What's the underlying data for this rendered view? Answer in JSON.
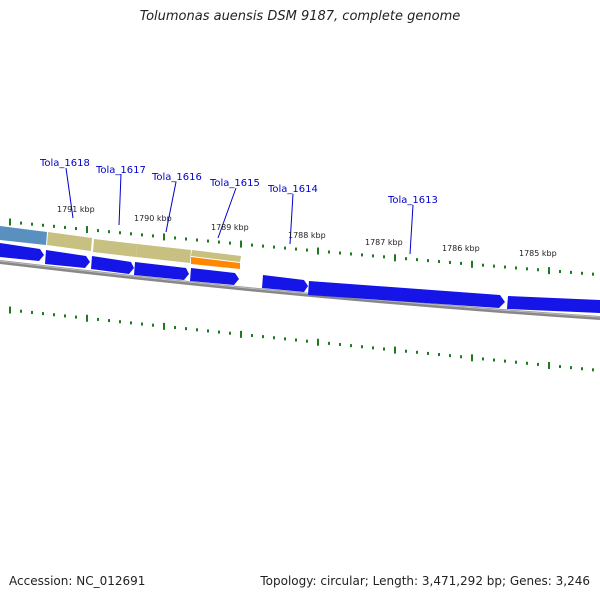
{
  "title": "Tolumonas auensis DSM 9187, complete genome",
  "accession": "Accession: NC_012691",
  "summary": "Topology: circular; Length: 3,471,292 bp; Genes: 3,246",
  "colors": {
    "gene_arrow": "#1515e8",
    "tick": "#1e7a1e",
    "backbone": "#808080",
    "label": "#0000cc",
    "feature_blue": "#5a90c0",
    "feature_khaki": "#c8c080",
    "feature_orange": "#ff8800"
  },
  "scale_labels": [
    "1791 kbp",
    "1790 kbp",
    "1789 kbp",
    "1788 kbp",
    "1787 kbp",
    "1786 kbp",
    "1785 kbp"
  ],
  "genes": [
    "Tola_1618",
    "Tola_1617",
    "Tola_1616",
    "Tola_1615",
    "Tola_1614",
    "Tola_1613"
  ]
}
